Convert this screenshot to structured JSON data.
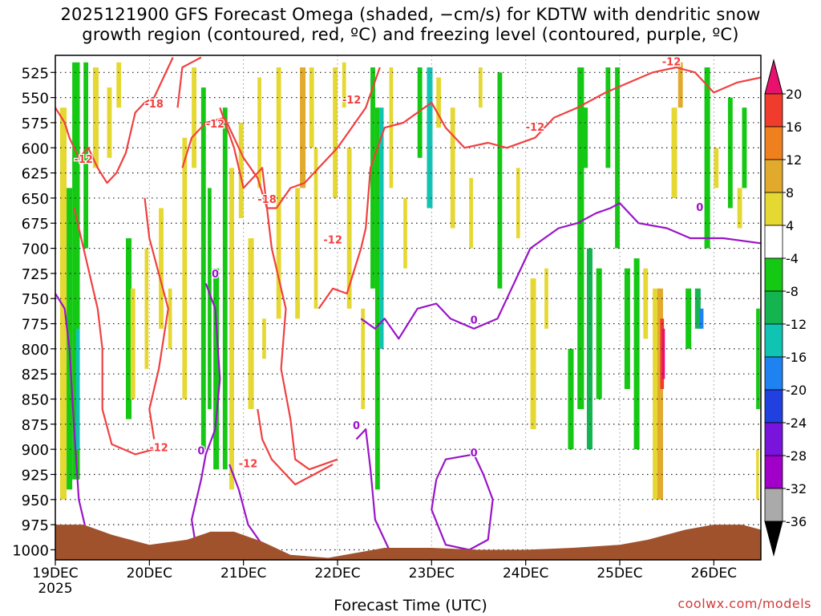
{
  "title": {
    "line1": "2025121900 GFS Forecast Omega (shaded, −cm/s) for KDTW with dendritic snow",
    "line2": "growth region (contoured, red, ºC) and freezing level (contoured, purple, ºC)"
  },
  "footer": "coolwx.com/models",
  "chart_data": {
    "type": "time-height cross section",
    "xlabel": "Forecast Time (UTC)",
    "x_ticks": [
      "19DEC",
      "20DEC",
      "21DEC",
      "22DEC",
      "23DEC",
      "24DEC",
      "25DEC",
      "26DEC"
    ],
    "x_year_label": "2025",
    "xlim_days": [
      0,
      7.5
    ],
    "y_ticks": [
      525,
      550,
      575,
      600,
      625,
      650,
      675,
      700,
      725,
      750,
      775,
      800,
      825,
      850,
      875,
      900,
      925,
      950,
      975,
      1000
    ],
    "ylim_hpa": [
      1010,
      508
    ],
    "grid": true,
    "colorbar": {
      "labels": [
        20,
        16,
        12,
        8,
        4,
        -4,
        -8,
        -12,
        -16,
        -20,
        -24,
        -28,
        -32,
        -36
      ],
      "colors": [
        "#e8126e",
        "#f03c2d",
        "#f0801e",
        "#e2aa2d",
        "#e6d832",
        "#ffffff",
        "#14c814",
        "#14b450",
        "#10c4b4",
        "#1e82f0",
        "#2040e0",
        "#7814dc",
        "#a000c8",
        "#aaaaaa"
      ]
    },
    "contour_labels": [
      {
        "text": "-12",
        "color": "#f04040",
        "x": 0.3,
        "p": 615
      },
      {
        "text": "-18",
        "color": "#f04040",
        "x": 1.05,
        "p": 560
      },
      {
        "text": "-12",
        "color": "#f04040",
        "x": 1.7,
        "p": 580
      },
      {
        "text": "-12",
        "color": "#f04040",
        "x": 1.1,
        "p": 902
      },
      {
        "text": "-12",
        "color": "#f04040",
        "x": 2.05,
        "p": 918
      },
      {
        "text": "-18",
        "color": "#f04040",
        "x": 2.25,
        "p": 655
      },
      {
        "text": "-12",
        "color": "#f04040",
        "x": 2.95,
        "p": 695
      },
      {
        "text": "-12",
        "color": "#f04040",
        "x": 3.15,
        "p": 556
      },
      {
        "text": "-12",
        "color": "#f04040",
        "x": 5.1,
        "p": 583
      },
      {
        "text": "-12",
        "color": "#f04040",
        "x": 6.55,
        "p": 518
      },
      {
        "text": "0",
        "color": "#9a14c8",
        "x": 1.7,
        "p": 729
      },
      {
        "text": "0",
        "color": "#9a14c8",
        "x": 1.55,
        "p": 905
      },
      {
        "text": "0",
        "color": "#9a14c8",
        "x": 3.2,
        "p": 880
      },
      {
        "text": "0",
        "color": "#9a14c8",
        "x": 4.45,
        "p": 775
      },
      {
        "text": "0",
        "color": "#9a14c8",
        "x": 4.45,
        "p": 907
      },
      {
        "text": "0",
        "color": "#9a14c8",
        "x": 6.85,
        "p": 663
      }
    ]
  }
}
